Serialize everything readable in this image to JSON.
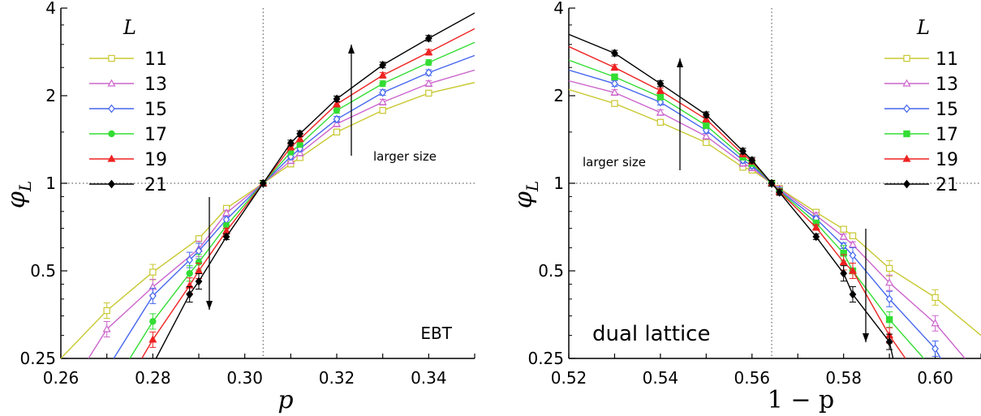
{
  "chart_data": [
    {
      "type": "line",
      "panel": "left",
      "yscale": "log",
      "xlim": [
        0.26,
        0.35
      ],
      "ylim": [
        0.25,
        4
      ],
      "xlabel": "p",
      "ylabel": "φ",
      "ylabel_sub": "L",
      "xticks": [
        0.26,
        0.28,
        0.3,
        0.32,
        0.34
      ],
      "xtick_labels": [
        "0.26",
        "0.28",
        "0.30",
        "0.32",
        "0.34"
      ],
      "yticks": [
        0.25,
        0.5,
        1,
        2,
        4
      ],
      "ytick_labels": [
        "0.25",
        "0.5",
        "1",
        "2",
        "4"
      ],
      "critical_x": 0.304,
      "critical_y": 1,
      "legend": {
        "title": "L",
        "position": "top-left",
        "entries": [
          "11",
          "13",
          "15",
          "17",
          "19",
          "21"
        ]
      },
      "annotations": {
        "label": "EBT",
        "arrow_text": "larger size"
      },
      "series": [
        {
          "name": "11",
          "color": "#c8c832",
          "marker": "square-open",
          "x": [
            0.26,
            0.27,
            0.28,
            0.29,
            0.296,
            0.304,
            0.31,
            0.312,
            0.32,
            0.33,
            0.34,
            0.35
          ],
          "y": [
            0.25,
            0.365,
            0.495,
            0.645,
            0.82,
            1.0,
            1.165,
            1.225,
            1.5,
            1.78,
            2.04,
            2.22
          ]
        },
        {
          "name": "13",
          "color": "#cc66cc",
          "marker": "triangle-open",
          "x": [
            0.266,
            0.27,
            0.28,
            0.29,
            0.296,
            0.304,
            0.31,
            0.312,
            0.32,
            0.33,
            0.34,
            0.35
          ],
          "y": [
            0.25,
            0.315,
            0.44,
            0.595,
            0.79,
            1.0,
            1.195,
            1.27,
            1.6,
            1.9,
            2.2,
            2.45
          ]
        },
        {
          "name": "15",
          "color": "#4466ee",
          "marker": "diamond-open",
          "x": [
            0.2715,
            0.28,
            0.288,
            0.29,
            0.296,
            0.304,
            0.31,
            0.312,
            0.32,
            0.33,
            0.34,
            0.35
          ],
          "y": [
            0.25,
            0.41,
            0.545,
            0.585,
            0.75,
            1.0,
            1.235,
            1.315,
            1.66,
            2.05,
            2.4,
            2.75
          ]
        },
        {
          "name": "17",
          "color": "#33dd33",
          "marker": "circle-filled",
          "x": [
            0.275,
            0.28,
            0.288,
            0.29,
            0.296,
            0.304,
            0.31,
            0.312,
            0.32,
            0.33,
            0.34,
            0.35
          ],
          "y": [
            0.25,
            0.335,
            0.49,
            0.535,
            0.715,
            1.0,
            1.28,
            1.36,
            1.78,
            2.2,
            2.6,
            3.05
          ]
        },
        {
          "name": "19",
          "color": "#ee2222",
          "marker": "triangle-filled",
          "x": [
            0.2776,
            0.28,
            0.288,
            0.29,
            0.296,
            0.304,
            0.31,
            0.312,
            0.32,
            0.33,
            0.34,
            0.35
          ],
          "y": [
            0.25,
            0.29,
            0.445,
            0.5,
            0.685,
            1.0,
            1.33,
            1.42,
            1.87,
            2.35,
            2.82,
            3.4
          ]
        },
        {
          "name": "21",
          "color": "#000000",
          "marker": "diamond-filled",
          "x": [
            0.2807,
            0.288,
            0.29,
            0.296,
            0.304,
            0.31,
            0.312,
            0.32,
            0.33,
            0.34,
            0.35
          ],
          "y": [
            0.25,
            0.415,
            0.46,
            0.655,
            1.0,
            1.375,
            1.48,
            1.95,
            2.55,
            3.15,
            3.85
          ]
        }
      ]
    },
    {
      "type": "line",
      "panel": "right",
      "yscale": "log",
      "xlim": [
        0.52,
        0.61
      ],
      "ylim": [
        0.25,
        4
      ],
      "xlabel": "1 − p",
      "ylabel": "φ",
      "ylabel_sub": "L",
      "xticks": [
        0.52,
        0.54,
        0.56,
        0.58,
        0.6
      ],
      "xtick_labels": [
        "0.52",
        "0.54",
        "0.56",
        "0.58",
        "0.60"
      ],
      "yticks": [
        0.25,
        0.5,
        1,
        2,
        4
      ],
      "ytick_labels": [
        "0.25",
        "0.5",
        "1",
        "2",
        "4"
      ],
      "critical_x": 0.5643,
      "critical_y": 1,
      "legend": {
        "title": "L",
        "position": "top-right",
        "entries": [
          "11",
          "13",
          "15",
          "17",
          "19",
          "21"
        ]
      },
      "annotations": {
        "label": "dual lattice",
        "arrow_text": "larger size"
      },
      "series": [
        {
          "name": "11",
          "color": "#c8c832",
          "marker": "square-open",
          "x": [
            0.52,
            0.53,
            0.54,
            0.55,
            0.558,
            0.56,
            0.5643,
            0.566,
            0.574,
            0.58,
            0.582,
            0.59,
            0.6,
            0.61
          ],
          "y": [
            2.1,
            1.88,
            1.62,
            1.38,
            1.135,
            1.11,
            1.0,
            0.96,
            0.795,
            0.695,
            0.66,
            0.51,
            0.405,
            0.3
          ]
        },
        {
          "name": "13",
          "color": "#cc66cc",
          "marker": "triangle-open",
          "x": [
            0.52,
            0.53,
            0.54,
            0.55,
            0.558,
            0.56,
            0.5643,
            0.566,
            0.574,
            0.58,
            0.582,
            0.59,
            0.6,
            0.6065
          ],
          "y": [
            2.25,
            2.05,
            1.75,
            1.45,
            1.17,
            1.13,
            1.0,
            0.955,
            0.775,
            0.655,
            0.615,
            0.455,
            0.33,
            0.25
          ]
        },
        {
          "name": "15",
          "color": "#4466ee",
          "marker": "diamond-open",
          "x": [
            0.52,
            0.53,
            0.54,
            0.55,
            0.558,
            0.56,
            0.5643,
            0.566,
            0.574,
            0.58,
            0.582,
            0.59,
            0.6,
            0.6012
          ],
          "y": [
            2.45,
            2.2,
            1.9,
            1.52,
            1.2,
            1.15,
            1.0,
            0.945,
            0.755,
            0.61,
            0.565,
            0.4,
            0.27,
            0.25
          ]
        },
        {
          "name": "17",
          "color": "#33dd33",
          "marker": "square-filled",
          "x": [
            0.52,
            0.53,
            0.54,
            0.55,
            0.558,
            0.56,
            0.5643,
            0.566,
            0.574,
            0.58,
            0.582,
            0.59,
            0.5975
          ],
          "y": [
            2.65,
            2.32,
            1.98,
            1.58,
            1.23,
            1.17,
            1.0,
            0.94,
            0.73,
            0.575,
            0.5,
            0.34,
            0.25
          ]
        },
        {
          "name": "19",
          "color": "#ee2222",
          "marker": "triangle-filled",
          "x": [
            0.52,
            0.53,
            0.54,
            0.55,
            0.558,
            0.56,
            0.5643,
            0.566,
            0.574,
            0.58,
            0.582,
            0.59,
            0.5935
          ],
          "y": [
            2.95,
            2.5,
            2.08,
            1.66,
            1.26,
            1.19,
            1.0,
            0.935,
            0.705,
            0.535,
            0.5,
            0.3,
            0.25
          ]
        },
        {
          "name": "21",
          "color": "#000000",
          "marker": "diamond-filled",
          "x": [
            0.52,
            0.53,
            0.54,
            0.55,
            0.558,
            0.56,
            0.5643,
            0.566,
            0.574,
            0.58,
            0.582,
            0.59,
            0.5908
          ],
          "y": [
            3.25,
            2.8,
            2.2,
            1.72,
            1.29,
            1.2,
            1.0,
            0.93,
            0.655,
            0.49,
            0.415,
            0.285,
            0.25
          ]
        }
      ]
    }
  ]
}
